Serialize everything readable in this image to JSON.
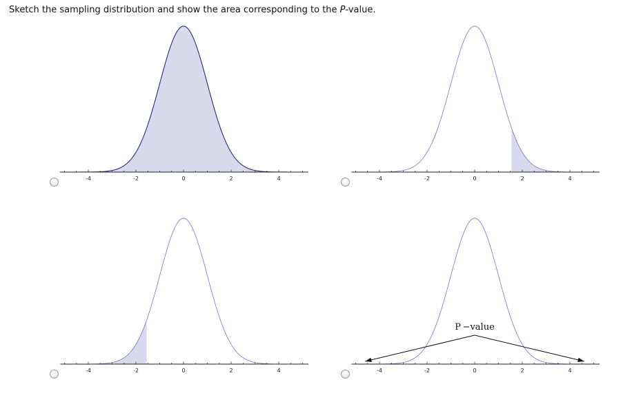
{
  "question": {
    "prefix": "Sketch the sampling distribution and show the area corresponding to the ",
    "italic": "P",
    "suffix": "-value."
  },
  "colors": {
    "curve_dark": "#2b2b84",
    "curve_light": "#7777cc",
    "fill": "#d9d9ec",
    "axis": "#222222",
    "arrow": "#111111"
  },
  "chart_data": [
    {
      "type": "area",
      "title": "",
      "distribution": "standard normal",
      "shading": "entire area under curve",
      "shade_from": -5.2,
      "shade_to": 5.2,
      "xlim": [
        -5.2,
        5.2
      ],
      "xticks": [
        -4,
        -2,
        0,
        2,
        4
      ],
      "tick_labels": [
        "-4",
        "-2",
        "0",
        "2",
        "4"
      ],
      "minor_tick_step": 0.5,
      "annotation": ""
    },
    {
      "type": "area",
      "title": "",
      "distribution": "standard normal",
      "shading": "right tail",
      "shade_from": 1.55,
      "shade_to": 5.2,
      "xlim": [
        -5.2,
        5.2
      ],
      "xticks": [
        -4,
        -2,
        0,
        2,
        4
      ],
      "tick_labels": [
        "-4",
        "-2",
        "0",
        "2",
        "4"
      ],
      "minor_tick_step": 0.5,
      "annotation": ""
    },
    {
      "type": "area",
      "title": "",
      "distribution": "standard normal",
      "shading": "left tail",
      "shade_from": -5.2,
      "shade_to": -1.55,
      "xlim": [
        -5.2,
        5.2
      ],
      "xticks": [
        -4,
        -2,
        0,
        2,
        4
      ],
      "tick_labels": [
        "-4",
        "-2",
        "0",
        "2",
        "4"
      ],
      "minor_tick_step": 0.5,
      "annotation": ""
    },
    {
      "type": "line",
      "title": "",
      "distribution": "standard normal",
      "shading": "none",
      "xlim": [
        -5.2,
        5.2
      ],
      "xticks": [
        -4,
        -2,
        0,
        2,
        4
      ],
      "tick_labels": [
        "-4",
        "-2",
        "0",
        "2",
        "4"
      ],
      "minor_tick_step": 0.5,
      "annotation": "P −value",
      "annotation_arrow_apex_x": 0,
      "annotation_arrow_targets_x": [
        -4.6,
        4.6
      ]
    }
  ],
  "options": [
    {
      "name": "option-a-radio"
    },
    {
      "name": "option-b-radio"
    },
    {
      "name": "option-c-radio"
    },
    {
      "name": "option-d-radio"
    }
  ]
}
